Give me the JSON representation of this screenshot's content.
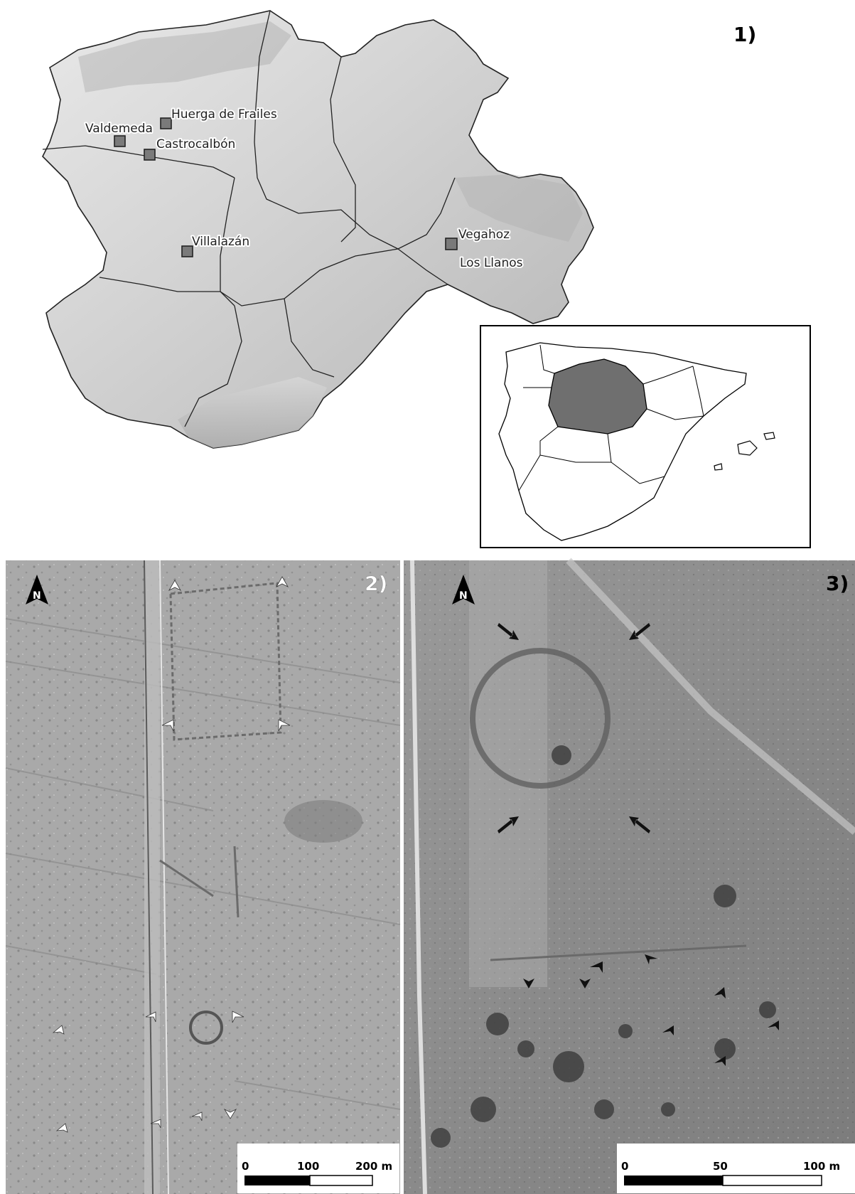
{
  "panel1": {
    "label": "1)",
    "sites": [
      {
        "name": "Huerga de Frailes"
      },
      {
        "name": "Valdemeda"
      },
      {
        "name": "Castrocalbón"
      },
      {
        "name": "Villalazán"
      },
      {
        "name": "Vegahoz"
      },
      {
        "name": "Los Llanos"
      }
    ]
  },
  "panel2": {
    "label": "2)",
    "north": "N",
    "scale": {
      "ticks": [
        "0",
        "100",
        "200 m"
      ]
    }
  },
  "panel3": {
    "label": "3)",
    "north": "N",
    "scale": {
      "ticks": [
        "0",
        "50",
        "100 m"
      ]
    }
  },
  "colors": {
    "relief": "#c9c9c9",
    "inset_region": "#6f6f6f",
    "marker": "#7a7a7a",
    "arrow_white": "#ffffff",
    "arrow_black": "#111111"
  }
}
